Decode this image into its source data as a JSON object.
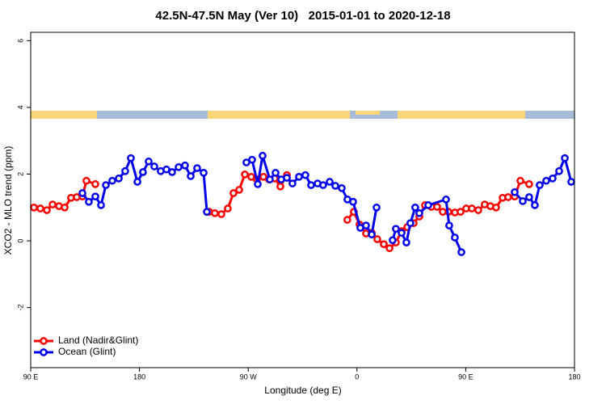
{
  "chart_data": {
    "type": "line",
    "title": "42.5N-47.5N May (Ver 10)   2015-01-01 to 2020-12-18",
    "xlabel": "Longitude (deg E)",
    "ylabel": "XCO2 - MLO trend (ppm)",
    "xlim": [
      90,
      540
    ],
    "ylim": [
      -3.8,
      6.25
    ],
    "xticks": [
      {
        "value": 90,
        "label": "90 E"
      },
      180,
      {
        "value": 270,
        "label": "90 W"
      },
      {
        "value": 360,
        "label": "0"
      },
      {
        "value": 450,
        "label": "90 E"
      },
      {
        "value": 540,
        "label": "180"
      }
    ],
    "yticks": [
      -2,
      0,
      2,
      4,
      6
    ],
    "legend": "bottom-left",
    "series": [
      {
        "name": "Land (Nadir&Glint)",
        "color": "#ff0000",
        "x": [
          92.7,
          98.0,
          103.4,
          108.1,
          113.4,
          118.1,
          123.4,
          128.1,
          132.8,
          136.1,
          143.5,
          null,
          237.8,
          242.4,
          247.8,
          253.1,
          257.8,
          262.5,
          267.2,
          272.5,
          277.2,
          282.6,
          287.2,
          291.9,
          296.6,
          302.0,
          null,
          352.0,
          357.4,
          362.1,
          367.5,
          372.2,
          376.8,
          382.2,
          386.9,
          392.2,
          396.9,
          401.6,
          406.9,
          411.6,
          416.3,
          421.6,
          426.3,
          431.0,
          435.7,
          441.0,
          445.7,
          450.4,
          455.1,
          460.4,
          465.7,
          470.4,
          475.1,
          480.5,
          485.1,
          490.5,
          495.2,
          502.5
        ],
        "values": [
          1.0,
          0.97,
          0.92,
          1.09,
          1.04,
          1.0,
          1.29,
          1.31,
          1.33,
          1.8,
          1.7,
          null,
          0.87,
          0.83,
          0.8,
          0.97,
          1.43,
          1.53,
          1.99,
          1.92,
          1.84,
          1.92,
          1.84,
          1.87,
          1.63,
          1.97,
          null,
          0.63,
          0.87,
          0.49,
          0.22,
          0.24,
          0.05,
          -0.1,
          -0.22,
          -0.05,
          0.29,
          0.41,
          0.53,
          0.73,
          1.07,
          1.02,
          1.02,
          0.87,
          0.87,
          0.85,
          0.87,
          0.97,
          0.97,
          0.92,
          1.09,
          1.04,
          1.0,
          1.29,
          1.31,
          1.33,
          1.8,
          1.7
        ]
      },
      {
        "name": "Ocean (Glint)",
        "color": "#0000ee",
        "x": [
          132.8,
          138.1,
          143.5,
          148.2,
          152.2,
          157.5,
          162.9,
          168.2,
          172.9,
          178.3,
          182.9,
          187.6,
          192.3,
          197.6,
          202.3,
          207.0,
          212.4,
          217.7,
          222.4,
          227.7,
          233.1,
          235.8,
          null,
          268.5,
          273.2,
          277.9,
          281.9,
          287.9,
          292.6,
          297.3,
          302.0,
          306.6,
          312.0,
          317.3,
          322.0,
          327.4,
          332.0,
          337.4,
          342.1,
          347.4,
          352.1,
          356.8,
          362.8,
          367.5,
          372.2,
          376.2,
          null,
          389.5,
          392.2,
          396.9,
          400.9,
          404.2,
          408.2,
          411.6,
          419.0,
          433.7,
          436.3,
          441.0,
          446.4,
          null,
          490.5,
          497.2,
          502.5,
          507.2,
          511.2,
          516.6,
          521.9,
          527.3,
          532.0,
          537.3
        ],
        "values": [
          1.43,
          1.17,
          1.33,
          1.07,
          1.67,
          1.8,
          1.87,
          2.09,
          2.48,
          1.77,
          2.06,
          2.38,
          2.23,
          2.09,
          2.14,
          2.06,
          2.21,
          2.26,
          1.94,
          2.18,
          2.04,
          0.87,
          null,
          2.35,
          2.43,
          1.7,
          2.55,
          1.84,
          2.04,
          1.84,
          1.89,
          1.72,
          1.92,
          1.97,
          1.67,
          1.72,
          1.67,
          1.77,
          1.65,
          1.58,
          1.24,
          1.17,
          0.39,
          0.46,
          0.19,
          1.0,
          null,
          0.02,
          0.36,
          0.24,
          -0.05,
          0.53,
          1.0,
          0.83,
          1.07,
          1.24,
          0.46,
          0.1,
          -0.34,
          null,
          1.46,
          1.19,
          1.31,
          1.07,
          1.67,
          1.8,
          1.87,
          2.09,
          2.48,
          1.77
        ]
      }
    ]
  }
}
